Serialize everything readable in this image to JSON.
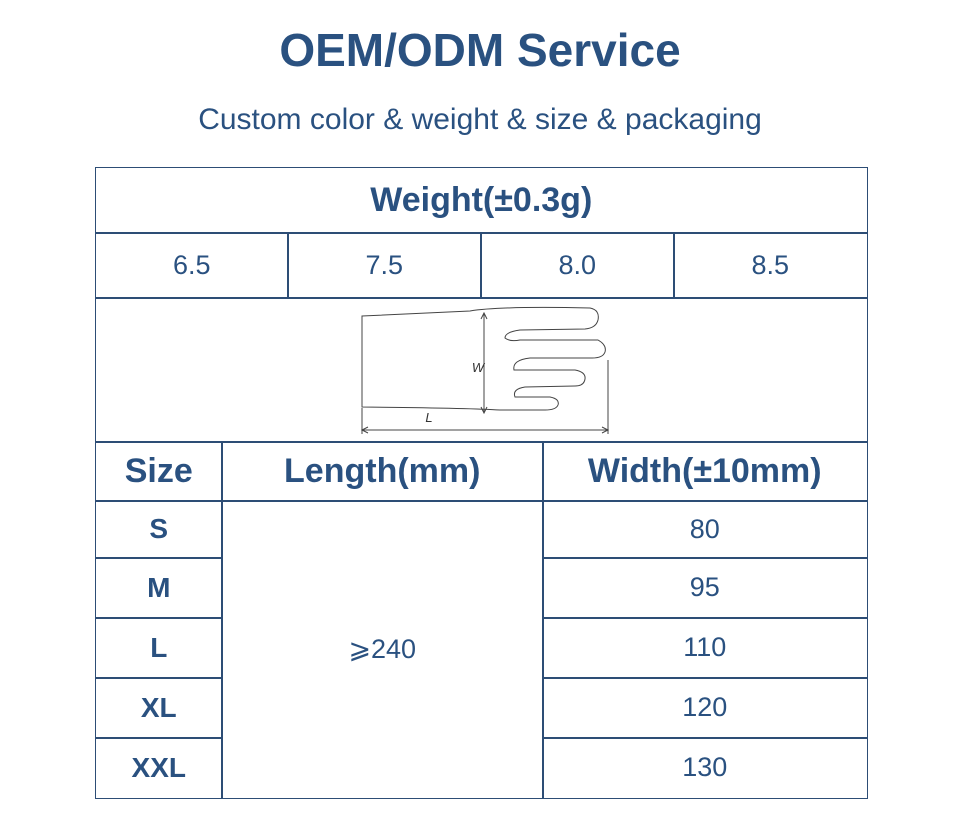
{
  "header": {
    "title": "OEM/ODM Service",
    "subtitle": "Custom color & weight & size & packaging"
  },
  "weight": {
    "title": "Weight(±0.3g)",
    "values": [
      "6.5",
      "7.5",
      "8.0",
      "8.5"
    ]
  },
  "diagram": {
    "width_label": "W",
    "length_label": "L"
  },
  "size_table": {
    "columns": [
      "Size",
      "Length(mm)",
      "Width(±10mm)"
    ],
    "length": "⩾240",
    "rows": [
      [
        "S",
        "80"
      ],
      [
        "M",
        "95"
      ],
      [
        "L",
        "110"
      ],
      [
        "XL",
        "120"
      ],
      [
        "XXL",
        "130"
      ]
    ]
  }
}
